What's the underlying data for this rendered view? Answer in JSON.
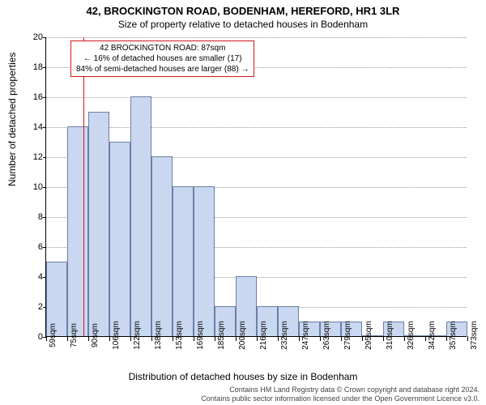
{
  "title": "42, BROCKINGTON ROAD, BODENHAM, HEREFORD, HR1 3LR",
  "subtitle": "Size of property relative to detached houses in Bodenham",
  "xlabel": "Distribution of detached houses by size in Bodenham",
  "ylabel": "Number of detached properties",
  "footer_line1": "Contains HM Land Registry data © Crown copyright and database right 2024.",
  "footer_line2": "Contains public sector information licensed under the Open Government Licence v3.0.",
  "chart": {
    "type": "histogram",
    "ylim": [
      0,
      20
    ],
    "ytick_step": 2,
    "bar_fill": "#c9d8f0",
    "bar_stroke": "#6b7ea8",
    "grid_color": "#999999",
    "background_color": "#ffffff",
    "x_start_value": 59,
    "x_bin_width_sqm": 15.7,
    "x_unit_suffix": "sqm",
    "bars": [
      5,
      14,
      15,
      13,
      16,
      12,
      10,
      10,
      2,
      4,
      2,
      2,
      1,
      1,
      1,
      0,
      1,
      0,
      0,
      1
    ],
    "xtick_labels": [
      "59sqm",
      "75sqm",
      "90sqm",
      "106sqm",
      "122sqm",
      "138sqm",
      "153sqm",
      "169sqm",
      "185sqm",
      "200sqm",
      "216sqm",
      "232sqm",
      "247sqm",
      "263sqm",
      "279sqm",
      "295sqm",
      "310sqm",
      "326sqm",
      "342sqm",
      "357sqm",
      "373sqm"
    ],
    "reference_line": {
      "value_sqm": 87,
      "color": "#d11919"
    },
    "annotation": {
      "border_color": "#d11919",
      "lines": [
        "42 BROCKINGTON ROAD: 87sqm",
        "← 16% of detached houses are smaller (17)",
        "84% of semi-detached houses are larger (88) →"
      ]
    }
  }
}
